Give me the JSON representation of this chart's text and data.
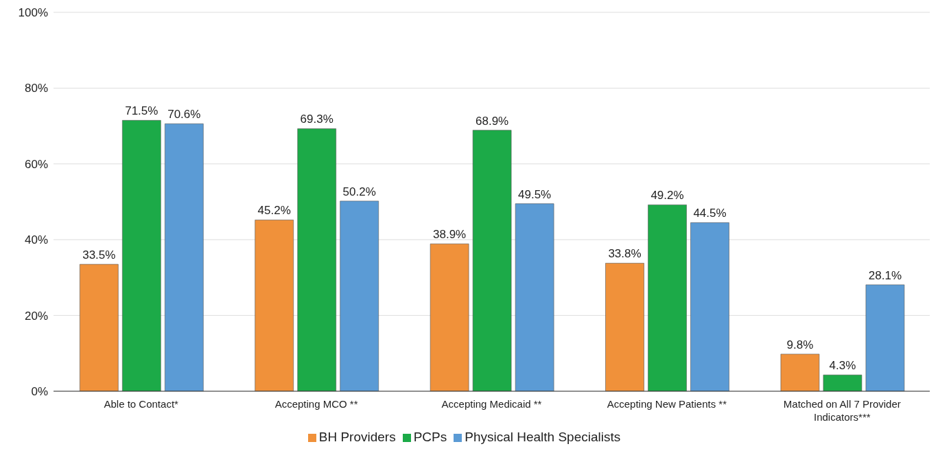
{
  "chart_data": {
    "type": "bar",
    "categories": [
      "Able to Contact*",
      "Accepting MCO **",
      "Accepting Medicaid **",
      "Accepting New Patients **",
      "Matched on All 7 Provider Indicators***"
    ],
    "series": [
      {
        "name": "BH Providers",
        "color": "#f0913a",
        "values": [
          33.5,
          45.2,
          38.9,
          33.8,
          9.8
        ],
        "value_labels": [
          "33.5%",
          "45.2%",
          "38.9%",
          "33.8%",
          "9.8%"
        ]
      },
      {
        "name": "PCPs",
        "color": "#1caa48",
        "values": [
          71.5,
          69.3,
          68.9,
          49.2,
          4.3
        ],
        "value_labels": [
          "71.5%",
          "69.3%",
          "68.9%",
          "49.2%",
          "4.3%"
        ]
      },
      {
        "name": "Physical Health Specialists",
        "color": "#5b9bd5",
        "values": [
          70.6,
          50.2,
          49.5,
          44.5,
          28.1
        ],
        "value_labels": [
          "70.6%",
          "50.2%",
          "49.5%",
          "44.5%",
          "28.1%"
        ]
      }
    ],
    "ylim": [
      0,
      100
    ],
    "yticks": [
      {
        "value": 0,
        "label": "0%"
      },
      {
        "value": 20,
        "label": "20%"
      },
      {
        "value": 40,
        "label": "40%"
      },
      {
        "value": 60,
        "label": "60%"
      },
      {
        "value": 80,
        "label": "80%"
      },
      {
        "value": 100,
        "label": "100%"
      }
    ],
    "grid": "y",
    "legend": "bottom"
  }
}
